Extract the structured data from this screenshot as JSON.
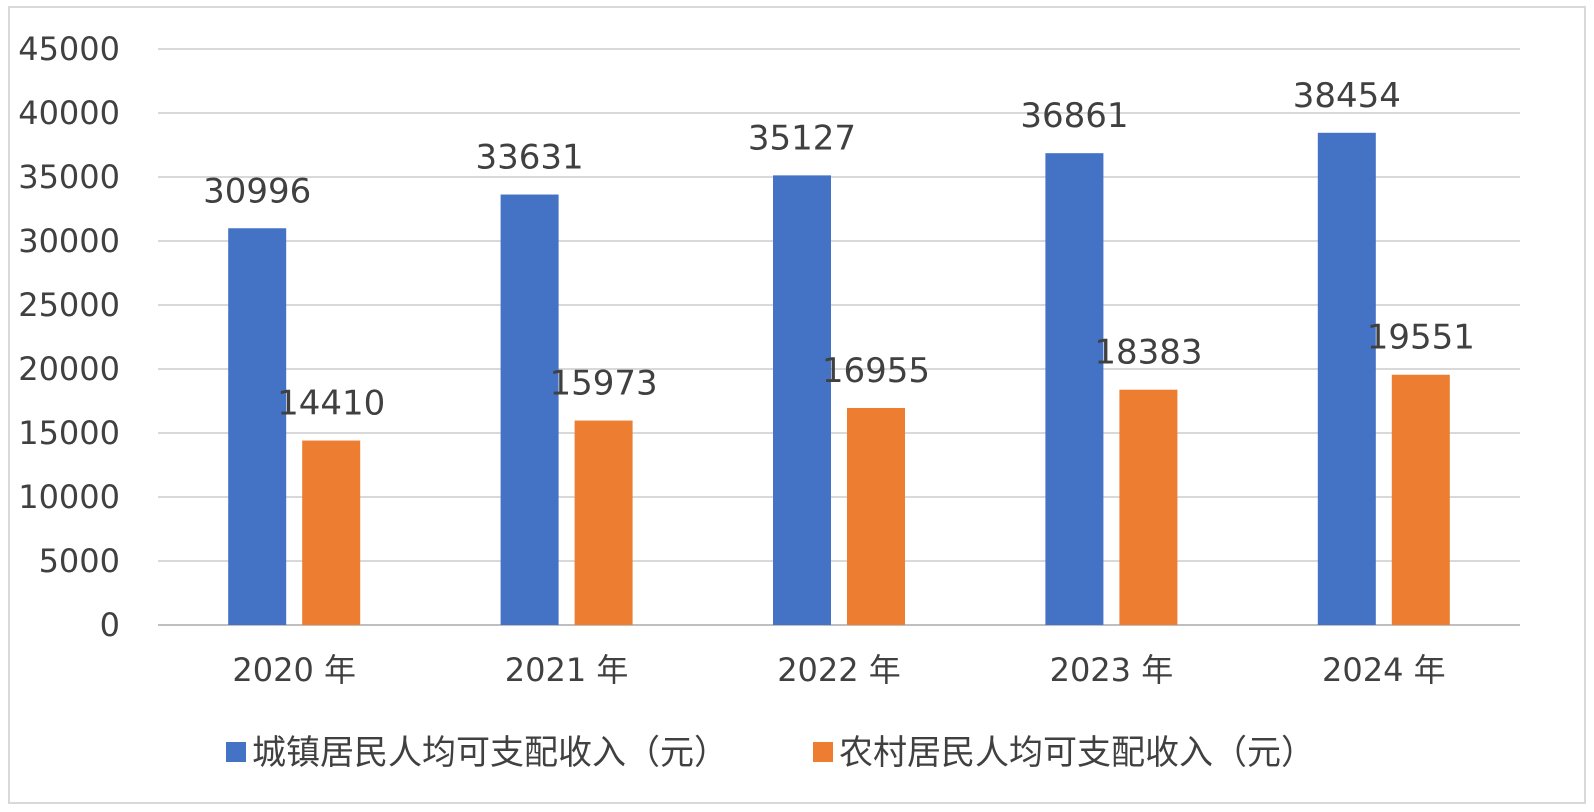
{
  "chart_data": {
    "type": "bar",
    "categories": [
      "2020 年",
      "2021 年",
      "2022 年",
      "2023 年",
      "2024 年"
    ],
    "series": [
      {
        "name": "城镇居民人均可支配收入（元）",
        "values": [
          30996,
          33631,
          35127,
          36861,
          38454
        ],
        "labels": [
          "30996",
          "33631",
          "35127",
          "36861",
          "38454"
        ],
        "color": "#4472C4"
      },
      {
        "name": "农村居民人均可支配收入（元）",
        "values": [
          14410,
          15973,
          16955,
          18383,
          19551
        ],
        "labels": [
          "14410",
          "15973",
          "16955",
          "18383",
          "19551"
        ],
        "color": "#ED7D31"
      }
    ],
    "yticks": [
      "0",
      "5000",
      "10000",
      "15000",
      "20000",
      "25000",
      "30000",
      "35000",
      "40000",
      "45000"
    ],
    "ylim": [
      0,
      45000
    ],
    "grid": true,
    "legend_position": "bottom",
    "gridline_color": "#d9d9d9",
    "axis_color": "#bfbfbf"
  }
}
